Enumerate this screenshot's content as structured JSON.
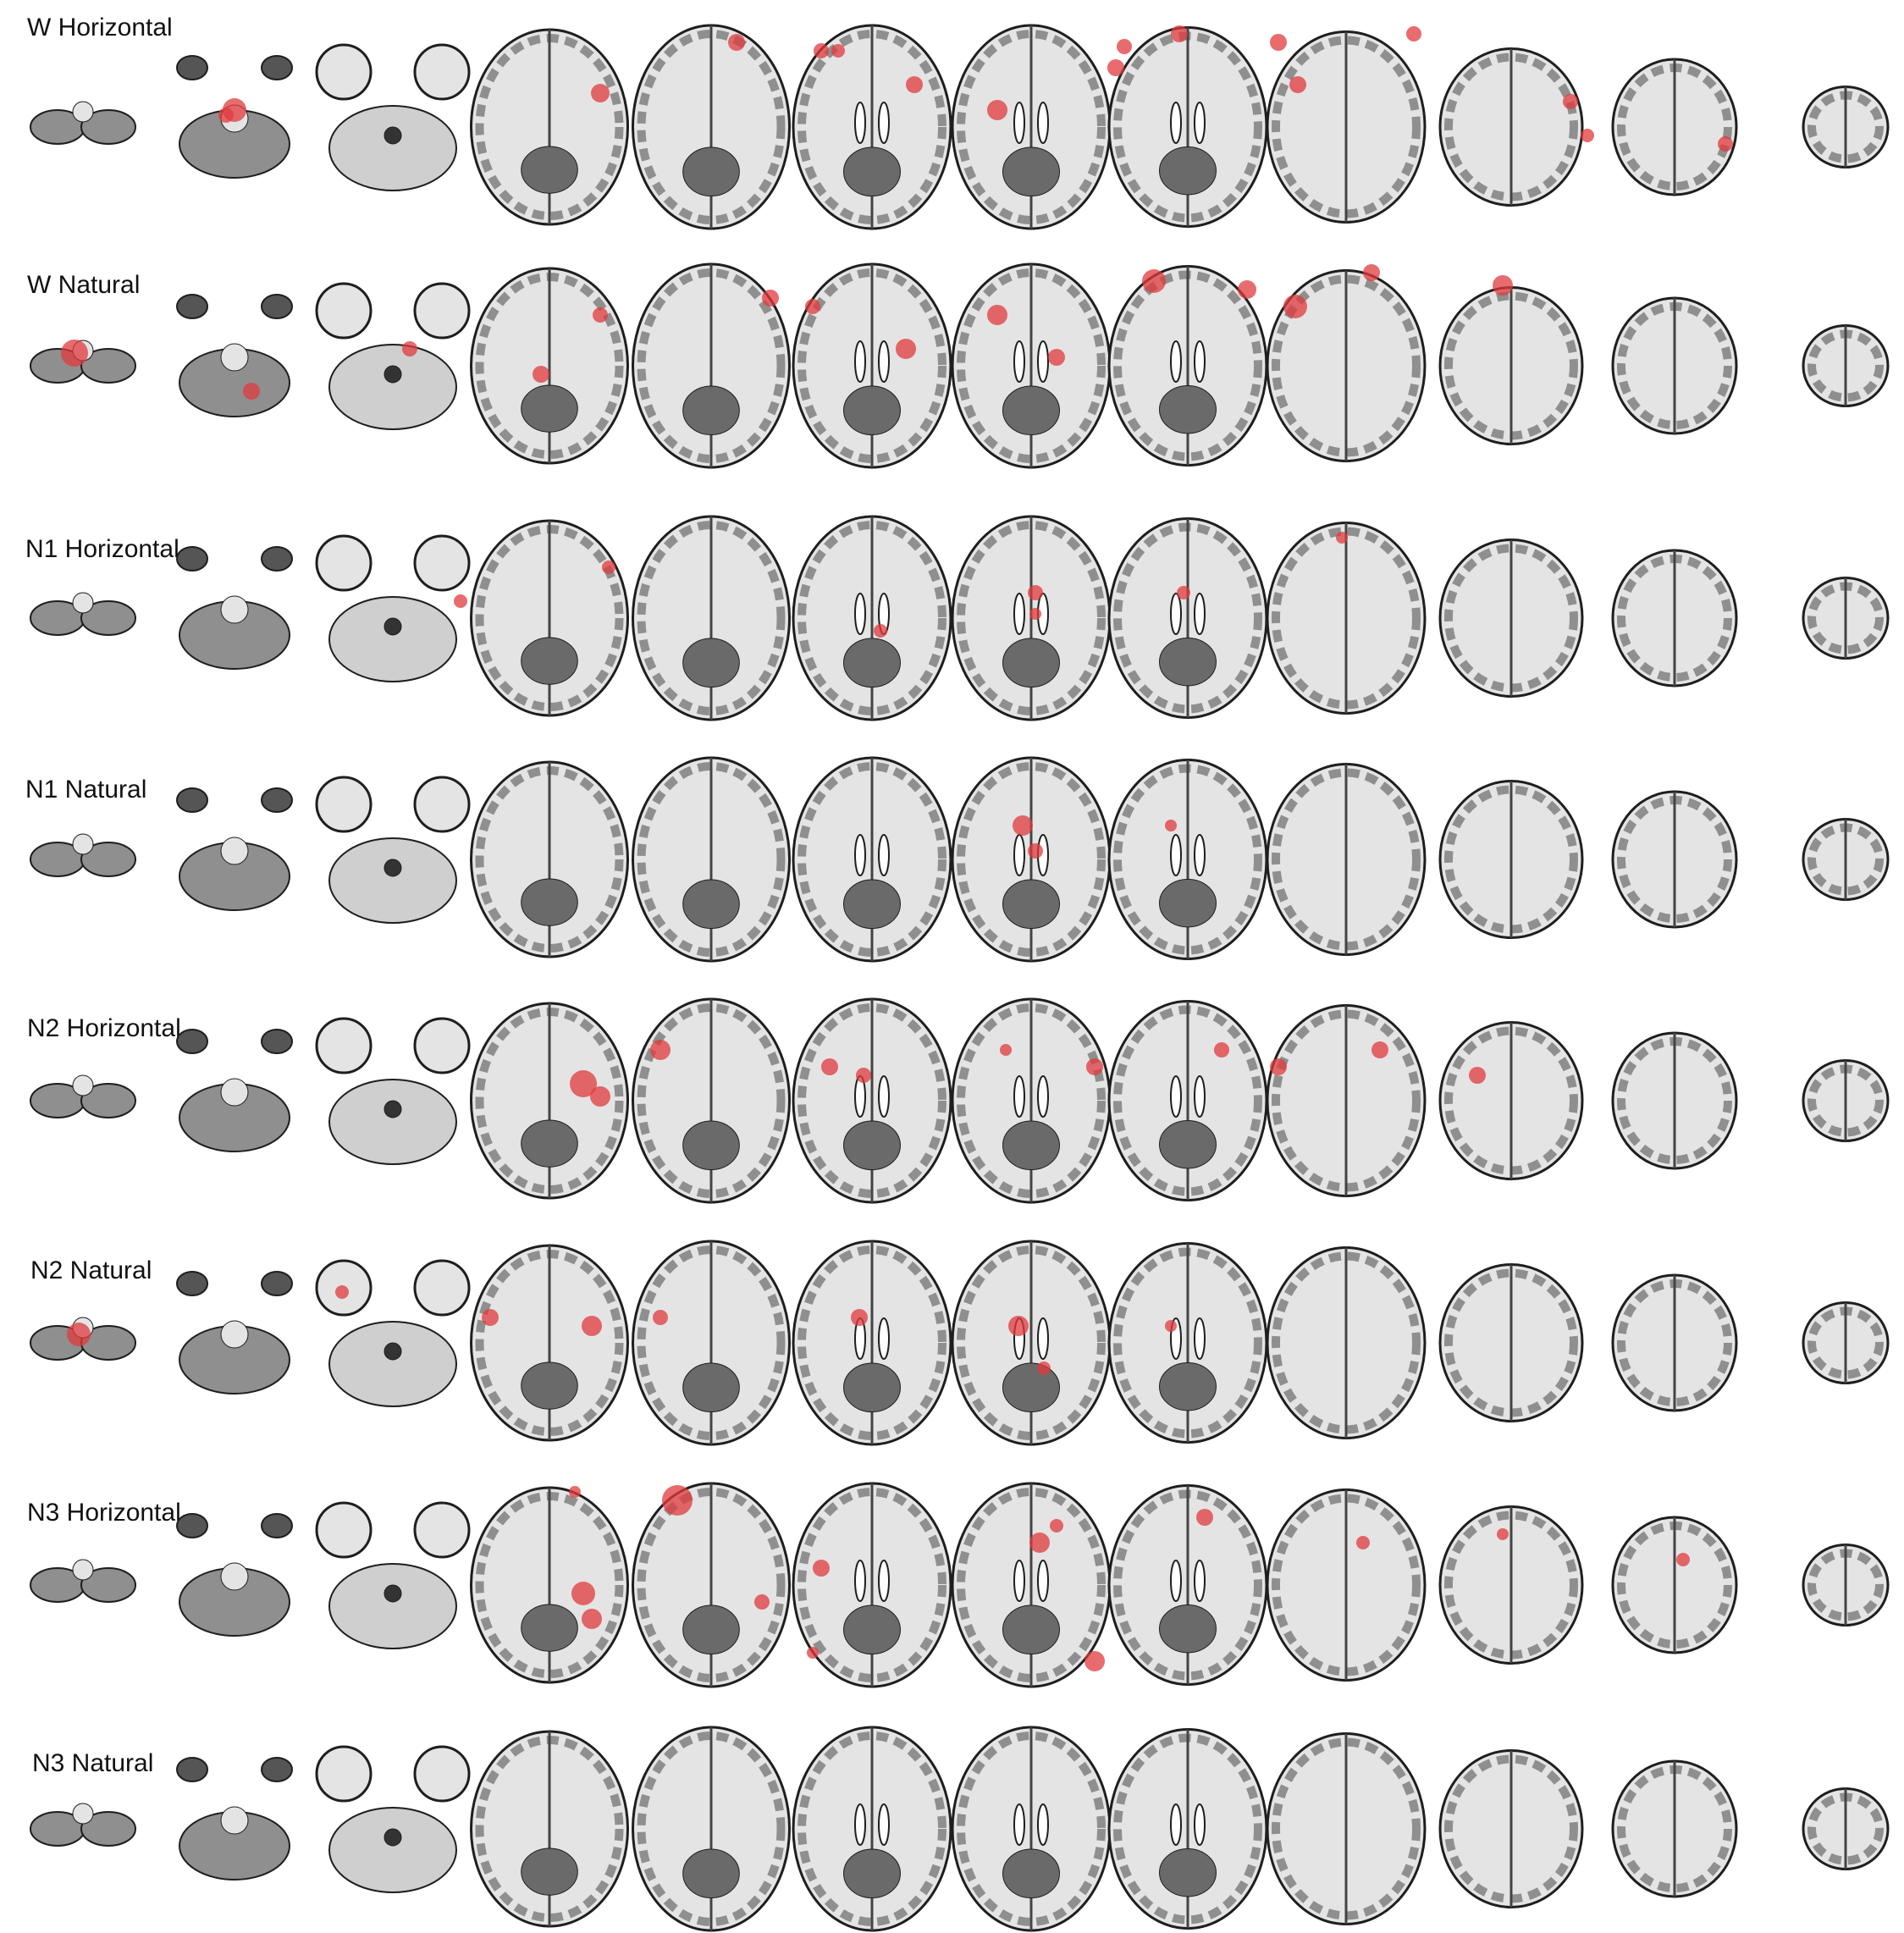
{
  "figure": {
    "rows": [
      {
        "label": "W Horizontal"
      },
      {
        "label": "W Natural"
      },
      {
        "label": "N1 Horizontal"
      },
      {
        "label": "N1 Natural"
      },
      {
        "label": "N2 Horizontal"
      },
      {
        "label": "N2 Natural"
      },
      {
        "label": "N3 Horizontal"
      },
      {
        "label": "N3 Natural"
      }
    ],
    "slices_per_row": 12,
    "colors": {
      "background": "#ffffff",
      "brain_gray": "#8f8f8f",
      "white_matter": "#e4e4e4",
      "outline": "#1e1e1e",
      "activation": "#e0393e"
    }
  }
}
